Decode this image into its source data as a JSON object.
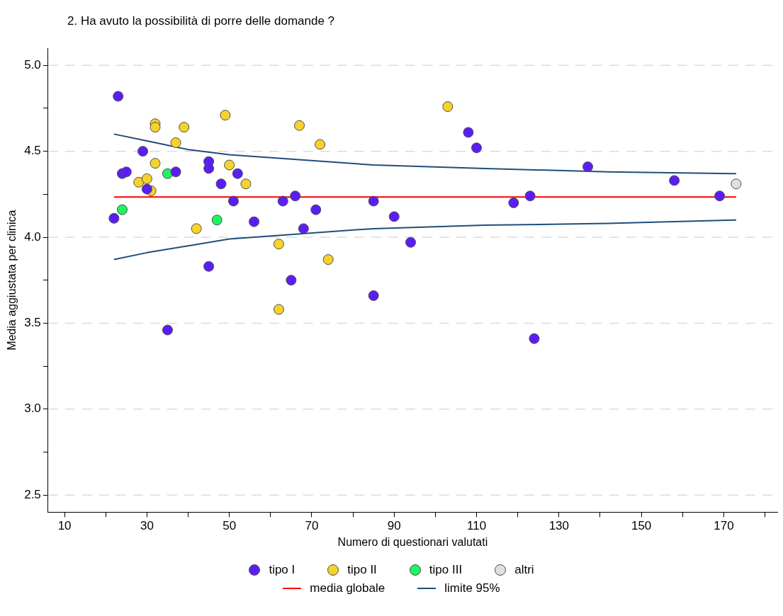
{
  "chart_data": {
    "type": "scatter",
    "title": "2. Ha avuto la possibilità di porre delle domande ?",
    "xlabel": "Numero di questionari valutati",
    "ylabel": "Media aggiustata per clinica",
    "xlim": [
      6,
      183
    ],
    "ylim": [
      2.4,
      5.1
    ],
    "xticks": [
      10,
      {
        "value": 20,
        "label": null
      },
      30,
      {
        "value": 40,
        "label": null
      },
      50,
      {
        "value": 60,
        "label": null
      },
      70,
      {
        "value": 80,
        "label": null
      },
      90,
      {
        "value": 100,
        "label": null
      },
      110,
      {
        "value": 120,
        "label": null
      },
      130,
      {
        "value": 140,
        "label": null
      },
      150,
      {
        "value": 160,
        "label": null
      },
      170,
      {
        "value": 180,
        "label": null
      }
    ],
    "yticks": [
      2.5,
      {
        "value": 2.75,
        "label": null
      },
      {
        "value": 3,
        "label": "3.0"
      },
      {
        "value": 3.25,
        "label": null
      },
      3.5,
      {
        "value": 3.75,
        "label": null
      },
      {
        "value": 4,
        "label": "4.0"
      },
      {
        "value": 4.25,
        "label": null
      },
      4.5,
      {
        "value": 4.75,
        "label": null
      },
      {
        "value": 5,
        "label": "5.0"
      }
    ],
    "grid": "y",
    "legend": "bottom",
    "marker": "circle",
    "series": [
      {
        "name": "tipo I",
        "color": "#5a1ef5",
        "x": [
          23,
          29,
          24,
          25,
          37,
          45,
          45,
          52,
          30,
          48,
          51,
          22,
          56,
          45,
          35,
          63,
          66,
          71,
          85,
          90,
          68,
          94,
          65,
          85,
          108,
          110,
          137,
          158,
          119,
          123,
          169,
          124
        ],
        "values": [
          4.82,
          4.5,
          4.37,
          4.38,
          4.38,
          4.44,
          4.4,
          4.37,
          4.28,
          4.31,
          4.21,
          4.11,
          4.09,
          3.83,
          3.46,
          4.21,
          4.24,
          4.16,
          4.21,
          4.12,
          4.05,
          3.97,
          3.75,
          3.66,
          4.61,
          4.52,
          4.41,
          4.33,
          4.2,
          4.24,
          4.24,
          3.41
        ]
      },
      {
        "name": "tipo II",
        "color": "#f5d22c",
        "x": [
          32,
          32,
          39,
          49,
          37,
          32,
          50,
          28,
          30,
          31,
          54,
          42,
          67,
          72,
          103,
          62,
          74,
          62
        ],
        "values": [
          4.66,
          4.64,
          4.64,
          4.71,
          4.55,
          4.43,
          4.42,
          4.32,
          4.34,
          4.27,
          4.31,
          4.05,
          4.65,
          4.54,
          4.76,
          3.96,
          3.87,
          3.58
        ]
      },
      {
        "name": "tipo III",
        "color": "#1ef562",
        "x": [
          35,
          24,
          47
        ],
        "values": [
          4.37,
          4.16,
          4.1
        ]
      },
      {
        "name": "altri",
        "color": "#e0e0e0",
        "x": [
          173
        ],
        "values": [
          4.31
        ]
      },
      {
        "name": "media globale",
        "type": "line",
        "marker": "none",
        "color": "#ff0000",
        "x": [
          22,
          173
        ],
        "values": [
          4.234,
          4.234
        ]
      },
      {
        "name": "limite 95%",
        "type": "line",
        "marker": "none",
        "color": "#1f4e79",
        "x": [
          22,
          30,
          40,
          50,
          56,
          85,
          112,
          142,
          173
        ],
        "values": [
          4.6,
          4.56,
          4.51,
          4.48,
          4.47,
          4.42,
          4.4,
          4.38,
          4.37
        ]
      },
      {
        "type": "line",
        "marker": "none",
        "color": "#1f4e79",
        "x": [
          22,
          30,
          40,
          50,
          56,
          85,
          112,
          142,
          173
        ],
        "values": [
          3.87,
          3.91,
          3.95,
          3.99,
          4.0,
          4.05,
          4.07,
          4.08,
          4.1
        ]
      }
    ]
  }
}
